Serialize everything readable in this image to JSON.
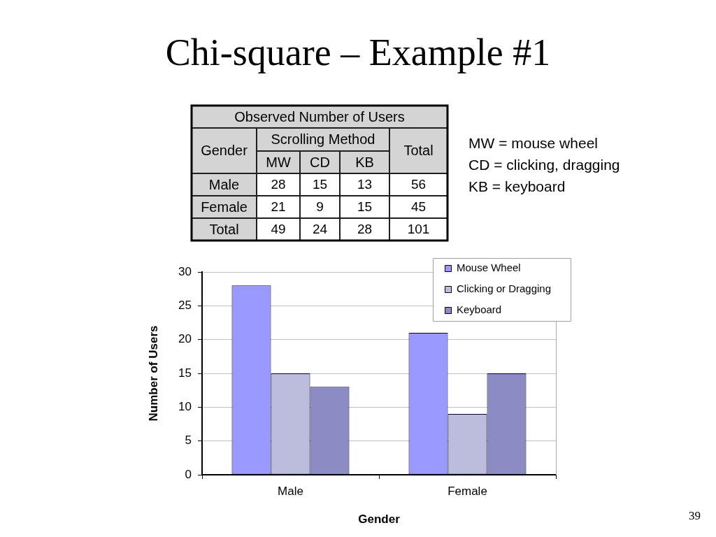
{
  "chart_data": [
    {
      "type": "other",
      "title": "Chi-square – Example #1",
      "annotations": [
        "39"
      ]
    },
    {
      "type": "heatmap",
      "title": "Observed Number of Users",
      "xlabel": "Scrolling Method",
      "ylabel": "Gender",
      "categories": [
        "MW",
        "CD",
        "KB",
        "Total"
      ],
      "y_categories": [
        "Male",
        "Female",
        "Total"
      ],
      "cells": [
        [
          28,
          15,
          13,
          56
        ],
        [
          21,
          9,
          15,
          45
        ],
        [
          49,
          24,
          28,
          101
        ]
      ],
      "data_labels": true,
      "annotations": [
        "MW = mouse wheel",
        "CD = clicking, dragging",
        "KB = keyboard"
      ]
    },
    {
      "type": "bar",
      "xlabel": "Gender",
      "ylabel": "Number of Users",
      "categories": [
        "Male",
        "Female"
      ],
      "series": [
        {
          "name": "Mouse Wheel",
          "color": "#9999ff",
          "values": [
            28,
            21
          ]
        },
        {
          "name": "Clicking or Dragging",
          "color": "#bcbcdc",
          "values": [
            15,
            9
          ]
        },
        {
          "name": "Keyboard",
          "color": "#8c8cc4",
          "values": [
            13,
            15
          ]
        }
      ],
      "ylim": [
        0,
        30
      ],
      "yticks": [
        0,
        5,
        10,
        15,
        20,
        25,
        30
      ],
      "grid": "y",
      "legend": "top right"
    }
  ]
}
